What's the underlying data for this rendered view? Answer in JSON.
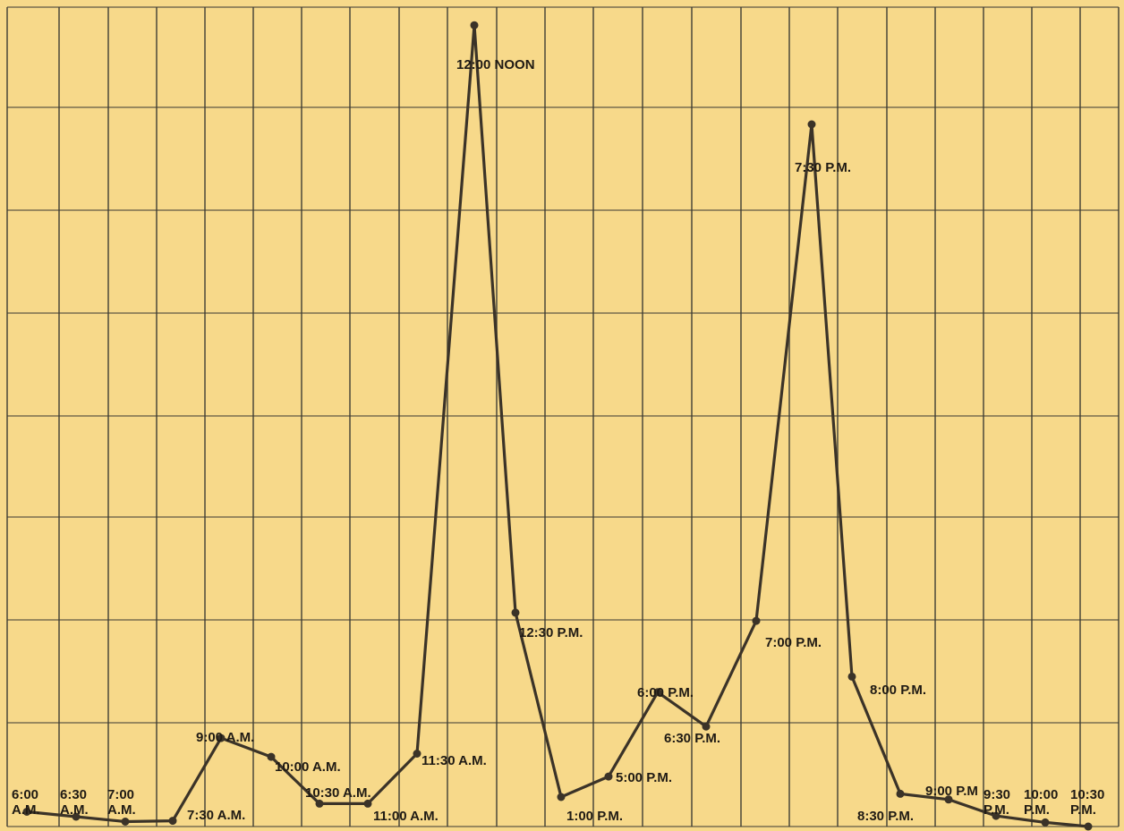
{
  "chart_data": {
    "type": "line",
    "title": "",
    "xlabel": "",
    "ylabel": "",
    "grid": true,
    "ylim": [
      0,
      100
    ],
    "points": [
      {
        "label": "6:00 A.M.",
        "label_lines": [
          "6:00",
          "A.M."
        ],
        "y": 1.8
      },
      {
        "label": "6:30 A.M.",
        "label_lines": [
          "6:30",
          "A.M."
        ],
        "y": 1.2
      },
      {
        "label": "7:00 A.M.",
        "label_lines": [
          "7:00",
          "A.M."
        ],
        "y": 0.6
      },
      {
        "label": "7:30 A.M.",
        "label_lines": [
          "7:30 A.M."
        ],
        "y": 0.7
      },
      {
        "label": "9:00 A.M.",
        "label_lines": [
          "9:00 A.M."
        ],
        "y": 10.8
      },
      {
        "label": "10:00 A.M.",
        "label_lines": [
          "10:00 A.M."
        ],
        "y": 8.5
      },
      {
        "label": "10:30 A.M.",
        "label_lines": [
          "10:30 A.M."
        ],
        "y": 2.8
      },
      {
        "label": "11:00 A.M.",
        "label_lines": [
          "11:00 A.M."
        ],
        "y": 2.8
      },
      {
        "label": "11:30 A.M.",
        "label_lines": [
          "11:30 A.M."
        ],
        "y": 8.9
      },
      {
        "label": "12:00 NOON",
        "label_lines": [
          "12:00 NOON"
        ],
        "y": 97.8
      },
      {
        "label": "12:30 P.M.",
        "label_lines": [
          "12:30 P.M."
        ],
        "y": 26.1
      },
      {
        "label": "1:00 P.M.",
        "label_lines": [
          "1:00 P.M."
        ],
        "y": 3.6
      },
      {
        "label": "5:00 P.M.",
        "label_lines": [
          "5:00  P.M."
        ],
        "y": 6.1
      },
      {
        "label": "6:00 P.M.",
        "label_lines": [
          "6:00 P.M."
        ],
        "y": 16.4
      },
      {
        "label": "6:30 P.M.",
        "label_lines": [
          "6:30 P.M."
        ],
        "y": 12.2
      },
      {
        "label": "7:00 P.M.",
        "label_lines": [
          "7:00 P.M."
        ],
        "y": 25.1
      },
      {
        "label": "7:30 P.M.",
        "label_lines": [
          "7:30 P.M."
        ],
        "y": 85.7
      },
      {
        "label": "8:00 P.M.",
        "label_lines": [
          "8:00 P.M."
        ],
        "y": 18.3
      },
      {
        "label": "8:30 P.M.",
        "label_lines": [
          "8:30 P.M."
        ],
        "y": 4.0
      },
      {
        "label": "9:00 P.M.",
        "label_lines": [
          "9:00 P.M"
        ],
        "y": 3.3
      },
      {
        "label": "9:30 P.M.",
        "label_lines": [
          "9:30",
          "P.M."
        ],
        "y": 1.3
      },
      {
        "label": "10:00 P.M.",
        "label_lines": [
          "10:00",
          "P.M."
        ],
        "y": 0.5
      },
      {
        "label": "10:30 P.M.",
        "label_lines": [
          "10:30",
          "P.M."
        ],
        "y": 0.0
      }
    ],
    "colors": {
      "paper": "#f7d98a",
      "grid": "#3a3a32",
      "line": "#3b3328",
      "text": "#1f1a14"
    }
  }
}
